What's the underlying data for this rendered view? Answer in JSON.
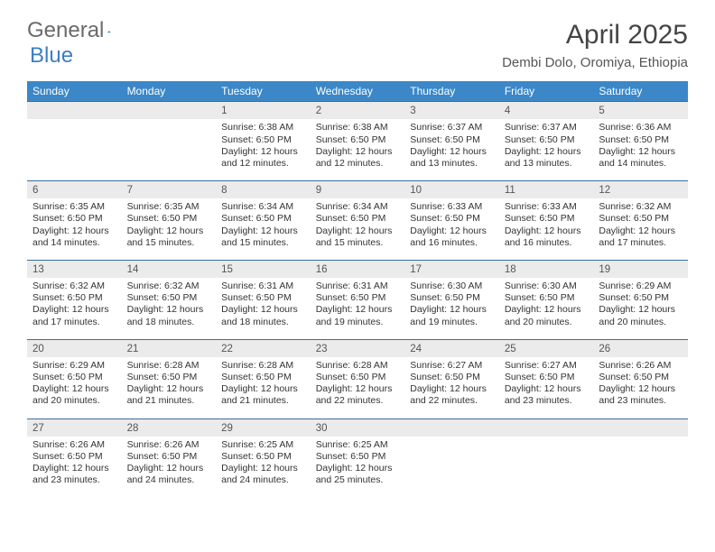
{
  "logo": {
    "text1": "General",
    "text2": "Blue"
  },
  "title": "April 2025",
  "location": "Dembi Dolo, Oromiya, Ethiopia",
  "colors": {
    "header_bg": "#3b87c8",
    "header_text": "#ffffff",
    "daynum_bg": "#ebebeb",
    "border": "#3b6d9c",
    "logo_gray": "#6a6a6a",
    "logo_blue": "#3b7fc4",
    "text": "#333333"
  },
  "weekdays": [
    "Sunday",
    "Monday",
    "Tuesday",
    "Wednesday",
    "Thursday",
    "Friday",
    "Saturday"
  ],
  "weeks": [
    [
      null,
      null,
      {
        "n": "1",
        "sr": "Sunrise: 6:38 AM",
        "ss": "Sunset: 6:50 PM",
        "dl": "Daylight: 12 hours and 12 minutes."
      },
      {
        "n": "2",
        "sr": "Sunrise: 6:38 AM",
        "ss": "Sunset: 6:50 PM",
        "dl": "Daylight: 12 hours and 12 minutes."
      },
      {
        "n": "3",
        "sr": "Sunrise: 6:37 AM",
        "ss": "Sunset: 6:50 PM",
        "dl": "Daylight: 12 hours and 13 minutes."
      },
      {
        "n": "4",
        "sr": "Sunrise: 6:37 AM",
        "ss": "Sunset: 6:50 PM",
        "dl": "Daylight: 12 hours and 13 minutes."
      },
      {
        "n": "5",
        "sr": "Sunrise: 6:36 AM",
        "ss": "Sunset: 6:50 PM",
        "dl": "Daylight: 12 hours and 14 minutes."
      }
    ],
    [
      {
        "n": "6",
        "sr": "Sunrise: 6:35 AM",
        "ss": "Sunset: 6:50 PM",
        "dl": "Daylight: 12 hours and 14 minutes."
      },
      {
        "n": "7",
        "sr": "Sunrise: 6:35 AM",
        "ss": "Sunset: 6:50 PM",
        "dl": "Daylight: 12 hours and 15 minutes."
      },
      {
        "n": "8",
        "sr": "Sunrise: 6:34 AM",
        "ss": "Sunset: 6:50 PM",
        "dl": "Daylight: 12 hours and 15 minutes."
      },
      {
        "n": "9",
        "sr": "Sunrise: 6:34 AM",
        "ss": "Sunset: 6:50 PM",
        "dl": "Daylight: 12 hours and 15 minutes."
      },
      {
        "n": "10",
        "sr": "Sunrise: 6:33 AM",
        "ss": "Sunset: 6:50 PM",
        "dl": "Daylight: 12 hours and 16 minutes."
      },
      {
        "n": "11",
        "sr": "Sunrise: 6:33 AM",
        "ss": "Sunset: 6:50 PM",
        "dl": "Daylight: 12 hours and 16 minutes."
      },
      {
        "n": "12",
        "sr": "Sunrise: 6:32 AM",
        "ss": "Sunset: 6:50 PM",
        "dl": "Daylight: 12 hours and 17 minutes."
      }
    ],
    [
      {
        "n": "13",
        "sr": "Sunrise: 6:32 AM",
        "ss": "Sunset: 6:50 PM",
        "dl": "Daylight: 12 hours and 17 minutes."
      },
      {
        "n": "14",
        "sr": "Sunrise: 6:32 AM",
        "ss": "Sunset: 6:50 PM",
        "dl": "Daylight: 12 hours and 18 minutes."
      },
      {
        "n": "15",
        "sr": "Sunrise: 6:31 AM",
        "ss": "Sunset: 6:50 PM",
        "dl": "Daylight: 12 hours and 18 minutes."
      },
      {
        "n": "16",
        "sr": "Sunrise: 6:31 AM",
        "ss": "Sunset: 6:50 PM",
        "dl": "Daylight: 12 hours and 19 minutes."
      },
      {
        "n": "17",
        "sr": "Sunrise: 6:30 AM",
        "ss": "Sunset: 6:50 PM",
        "dl": "Daylight: 12 hours and 19 minutes."
      },
      {
        "n": "18",
        "sr": "Sunrise: 6:30 AM",
        "ss": "Sunset: 6:50 PM",
        "dl": "Daylight: 12 hours and 20 minutes."
      },
      {
        "n": "19",
        "sr": "Sunrise: 6:29 AM",
        "ss": "Sunset: 6:50 PM",
        "dl": "Daylight: 12 hours and 20 minutes."
      }
    ],
    [
      {
        "n": "20",
        "sr": "Sunrise: 6:29 AM",
        "ss": "Sunset: 6:50 PM",
        "dl": "Daylight: 12 hours and 20 minutes."
      },
      {
        "n": "21",
        "sr": "Sunrise: 6:28 AM",
        "ss": "Sunset: 6:50 PM",
        "dl": "Daylight: 12 hours and 21 minutes."
      },
      {
        "n": "22",
        "sr": "Sunrise: 6:28 AM",
        "ss": "Sunset: 6:50 PM",
        "dl": "Daylight: 12 hours and 21 minutes."
      },
      {
        "n": "23",
        "sr": "Sunrise: 6:28 AM",
        "ss": "Sunset: 6:50 PM",
        "dl": "Daylight: 12 hours and 22 minutes."
      },
      {
        "n": "24",
        "sr": "Sunrise: 6:27 AM",
        "ss": "Sunset: 6:50 PM",
        "dl": "Daylight: 12 hours and 22 minutes."
      },
      {
        "n": "25",
        "sr": "Sunrise: 6:27 AM",
        "ss": "Sunset: 6:50 PM",
        "dl": "Daylight: 12 hours and 23 minutes."
      },
      {
        "n": "26",
        "sr": "Sunrise: 6:26 AM",
        "ss": "Sunset: 6:50 PM",
        "dl": "Daylight: 12 hours and 23 minutes."
      }
    ],
    [
      {
        "n": "27",
        "sr": "Sunrise: 6:26 AM",
        "ss": "Sunset: 6:50 PM",
        "dl": "Daylight: 12 hours and 23 minutes."
      },
      {
        "n": "28",
        "sr": "Sunrise: 6:26 AM",
        "ss": "Sunset: 6:50 PM",
        "dl": "Daylight: 12 hours and 24 minutes."
      },
      {
        "n": "29",
        "sr": "Sunrise: 6:25 AM",
        "ss": "Sunset: 6:50 PM",
        "dl": "Daylight: 12 hours and 24 minutes."
      },
      {
        "n": "30",
        "sr": "Sunrise: 6:25 AM",
        "ss": "Sunset: 6:50 PM",
        "dl": "Daylight: 12 hours and 25 minutes."
      },
      null,
      null,
      null
    ]
  ]
}
